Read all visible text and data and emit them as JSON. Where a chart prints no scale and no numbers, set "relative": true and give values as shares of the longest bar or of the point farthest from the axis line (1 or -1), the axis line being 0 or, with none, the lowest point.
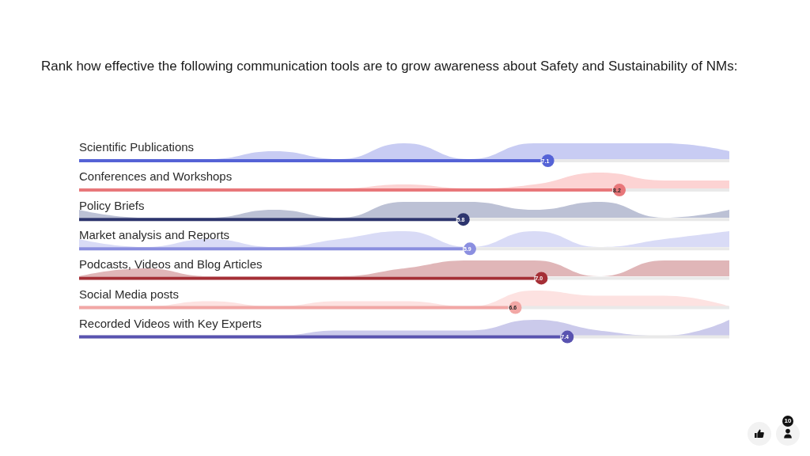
{
  "chart_data": [
    {
      "type": "bar",
      "orientation": "horizontal",
      "title": "Rank how effective the following communication tools are to grow awareness about Safety and Sustainability of NMs:",
      "categories": [
        "Scientific Publications",
        "Conferences and Workshops",
        "Policy Briefs",
        "Market analysis and Reports",
        "Podcasts, Videos and Blog Articles",
        "Social Media posts",
        "Recorded Videos with Key Experts"
      ],
      "values": [
        7.1,
        8.2,
        5.8,
        5.9,
        7.0,
        6.6,
        7.4
      ],
      "value_labels": [
        "7.1",
        "8.2",
        "5.8",
        "5.9",
        "7.0",
        "6.6",
        "7.4"
      ],
      "colors": [
        "#5563d6",
        "#e8777a",
        "#2d356e",
        "#8b8fe0",
        "#a52f36",
        "#f2a7a5",
        "#5953b0"
      ],
      "tick_labels": "y",
      "annotations": [
        "10"
      ]
    },
    {
      "type": "area",
      "relative": true,
      "categories": [
        null,
        null,
        null,
        null,
        null,
        null,
        null,
        null,
        null,
        null,
        null
      ],
      "series": [
        {
          "color": "#c8ccf3",
          "values": [
            0,
            0,
            0,
            0.5,
            0,
            1,
            0,
            1,
            1,
            1,
            0.5
          ]
        }
      ]
    },
    {
      "type": "area",
      "relative": true,
      "categories": [
        null,
        null,
        null,
        null,
        null,
        null,
        null,
        null,
        null,
        null,
        null
      ],
      "series": [
        {
          "color": "#fcd3d3",
          "values": [
            0,
            0,
            0,
            0,
            0,
            0.25,
            0,
            0.25,
            1,
            0.5,
            0.5
          ]
        }
      ]
    },
    {
      "type": "area",
      "relative": true,
      "categories": [
        null,
        null,
        null,
        null,
        null,
        null,
        null,
        null,
        null,
        null,
        null
      ],
      "series": [
        {
          "color": "#bcc1d5",
          "values": [
            0.5,
            0,
            0,
            0.5,
            0,
            1,
            1,
            0.5,
            1,
            0,
            0.5
          ]
        }
      ]
    },
    {
      "type": "area",
      "relative": true,
      "categories": [
        null,
        null,
        null,
        null,
        null,
        null,
        null,
        null,
        null,
        null,
        null
      ],
      "series": [
        {
          "color": "#d9dbf6",
          "values": [
            0.5,
            0,
            0.5,
            0,
            0.5,
            1,
            0,
            1,
            0,
            0.5,
            1
          ]
        }
      ]
    },
    {
      "type": "area",
      "relative": true,
      "categories": [
        null,
        null,
        null,
        null,
        null,
        null,
        null,
        null,
        null,
        null,
        null
      ],
      "series": [
        {
          "color": "#e0b6b8",
          "values": [
            0,
            0.5,
            0,
            0,
            0,
            0.5,
            1,
            1,
            0,
            1,
            1
          ]
        }
      ]
    },
    {
      "type": "area",
      "relative": true,
      "categories": [
        null,
        null,
        null,
        null,
        null,
        null,
        null,
        null,
        null,
        null,
        null
      ],
      "series": [
        {
          "color": "#fde2e1",
          "values": [
            0,
            0,
            0.33,
            0,
            0.33,
            0.33,
            0,
            1,
            0.67,
            0.67,
            0
          ]
        }
      ]
    },
    {
      "type": "area",
      "relative": true,
      "categories": [
        null,
        null,
        null,
        null,
        null,
        null,
        null,
        null,
        null,
        null,
        null
      ],
      "series": [
        {
          "color": "#cbcaeb",
          "values": [
            0,
            0,
            0,
            0,
            0.33,
            0.33,
            0.33,
            1,
            0.33,
            0,
            1
          ]
        }
      ]
    }
  ]
}
